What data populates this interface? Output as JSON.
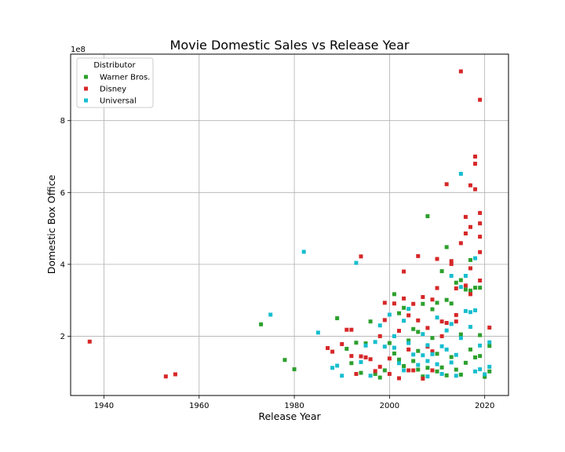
{
  "chart_data": {
    "type": "scatter",
    "title": "Movie Domestic Sales vs Release Year",
    "xlabel": "Release Year",
    "ylabel": "Domestic Box Office",
    "y_offset_label": "1e8",
    "xlim": [
      1933,
      2025
    ],
    "ylim": [
      0.35,
      9.85
    ],
    "y_scale_factor": 100000000,
    "x_ticks": [
      1940,
      1960,
      1980,
      2000,
      2020
    ],
    "y_ticks": [
      2,
      4,
      6,
      8
    ],
    "grid": true,
    "marker": "square",
    "legend": {
      "title": "Distributor",
      "placement": "top-left"
    },
    "series": [
      {
        "name": "Warner Bros.",
        "color": "#2ca02c",
        "points": [
          [
            1973,
            2.33
          ],
          [
            1978,
            1.34
          ],
          [
            1980,
            1.08
          ],
          [
            1989,
            2.5
          ],
          [
            1991,
            1.65
          ],
          [
            1992,
            1.25
          ],
          [
            1993,
            1.82
          ],
          [
            1994,
            0.98
          ],
          [
            1995,
            1.8
          ],
          [
            1996,
            2.41
          ],
          [
            1997,
            0.95
          ],
          [
            1998,
            0.85
          ],
          [
            1999,
            1.05
          ],
          [
            2000,
            1.81
          ],
          [
            2001,
            3.17
          ],
          [
            2001,
            1.52
          ],
          [
            2002,
            1.35
          ],
          [
            2002,
            2.64
          ],
          [
            2003,
            1.17
          ],
          [
            2003,
            2.79
          ],
          [
            2004,
            1.88
          ],
          [
            2005,
            1.31
          ],
          [
            2005,
            2.2
          ],
          [
            2006,
            1.07
          ],
          [
            2006,
            2.12
          ],
          [
            2007,
            0.88
          ],
          [
            2007,
            2.9
          ],
          [
            2008,
            5.34
          ],
          [
            2008,
            1.12
          ],
          [
            2009,
            2.75
          ],
          [
            2009,
            1.95
          ],
          [
            2010,
            1.02
          ],
          [
            2010,
            2.93
          ],
          [
            2011,
            3.81
          ],
          [
            2011,
            1.13
          ],
          [
            2012,
            4.48
          ],
          [
            2012,
            3.01
          ],
          [
            2012,
            0.91
          ],
          [
            2013,
            2.91
          ],
          [
            2013,
            1.42
          ],
          [
            2014,
            3.49
          ],
          [
            2014,
            1.07
          ],
          [
            2015,
            3.56
          ],
          [
            2015,
            2.05
          ],
          [
            2016,
            3.3
          ],
          [
            2016,
            1.26
          ],
          [
            2017,
            4.12
          ],
          [
            2017,
            1.63
          ],
          [
            2017,
            3.27
          ],
          [
            2018,
            1.41
          ],
          [
            2018,
            3.35
          ],
          [
            2019,
            3.35
          ],
          [
            2019,
            1.45
          ],
          [
            2019,
            2.03
          ],
          [
            2020,
            0.87
          ],
          [
            2021,
            1.73
          ],
          [
            2021,
            1.02
          ],
          [
            2015,
            0.93
          ],
          [
            2010,
            1.51
          ],
          [
            2006,
            1.59
          ]
        ]
      },
      {
        "name": "Disney",
        "color": "#d62728",
        "points": [
          [
            1937,
            1.85
          ],
          [
            1953,
            0.88
          ],
          [
            1955,
            0.94
          ],
          [
            1987,
            1.67
          ],
          [
            1988,
            1.57
          ],
          [
            1990,
            1.78
          ],
          [
            1991,
            2.18
          ],
          [
            1992,
            2.18
          ],
          [
            1992,
            1.45
          ],
          [
            1993,
            0.95
          ],
          [
            1994,
            4.22
          ],
          [
            1994,
            1.44
          ],
          [
            1995,
            1.41
          ],
          [
            1996,
            1.36
          ],
          [
            1997,
            1.03
          ],
          [
            1998,
            2.0
          ],
          [
            1998,
            1.15
          ],
          [
            1999,
            2.93
          ],
          [
            1999,
            2.45
          ],
          [
            2000,
            1.38
          ],
          [
            2001,
            2.91
          ],
          [
            2002,
            0.83
          ],
          [
            2002,
            2.15
          ],
          [
            2003,
            3.8
          ],
          [
            2003,
            3.05
          ],
          [
            2004,
            2.58
          ],
          [
            2004,
            1.05
          ],
          [
            2005,
            2.9
          ],
          [
            2005,
            1.05
          ],
          [
            2006,
            4.23
          ],
          [
            2006,
            2.44
          ],
          [
            2007,
            3.09
          ],
          [
            2007,
            0.82
          ],
          [
            2008,
            2.23
          ],
          [
            2008,
            1.71
          ],
          [
            2009,
            3.02
          ],
          [
            2009,
            1.58
          ],
          [
            2010,
            4.15
          ],
          [
            2010,
            3.34
          ],
          [
            2011,
            2.41
          ],
          [
            2012,
            6.23
          ],
          [
            2012,
            2.37
          ],
          [
            2013,
            4.09
          ],
          [
            2013,
            4.01
          ],
          [
            2014,
            3.33
          ],
          [
            2014,
            2.59
          ],
          [
            2015,
            9.37
          ],
          [
            2015,
            4.59
          ],
          [
            2016,
            5.32
          ],
          [
            2016,
            4.86
          ],
          [
            2016,
            3.41
          ],
          [
            2017,
            6.2
          ],
          [
            2017,
            5.04
          ],
          [
            2017,
            3.89
          ],
          [
            2018,
            7.0
          ],
          [
            2018,
            6.8
          ],
          [
            2018,
            6.09
          ],
          [
            2019,
            8.58
          ],
          [
            2019,
            5.43
          ],
          [
            2019,
            4.77
          ],
          [
            2019,
            4.34
          ],
          [
            2019,
            3.55
          ],
          [
            2019,
            5.14
          ],
          [
            2021,
            2.24
          ],
          [
            2017,
            3.17
          ],
          [
            2014,
            2.41
          ],
          [
            2011,
            2.0
          ],
          [
            2009,
            1.05
          ],
          [
            2004,
            1.63
          ],
          [
            2000,
            0.95
          ]
        ]
      },
      {
        "name": "Universal",
        "color": "#17becf",
        "points": [
          [
            1975,
            2.6
          ],
          [
            1982,
            4.35
          ],
          [
            1985,
            2.1
          ],
          [
            1988,
            1.12
          ],
          [
            1989,
            1.18
          ],
          [
            1990,
            0.9
          ],
          [
            1993,
            4.04
          ],
          [
            1994,
            1.28
          ],
          [
            1995,
            1.74
          ],
          [
            1997,
            1.84
          ],
          [
            1998,
            2.3
          ],
          [
            1999,
            1.71
          ],
          [
            2000,
            2.6
          ],
          [
            2001,
            2.0
          ],
          [
            2002,
            1.25
          ],
          [
            2003,
            2.43
          ],
          [
            2004,
            2.76
          ],
          [
            2004,
            1.81
          ],
          [
            2005,
            1.49
          ],
          [
            2006,
            1.2
          ],
          [
            2007,
            2.06
          ],
          [
            2007,
            1.47
          ],
          [
            2008,
            1.75
          ],
          [
            2008,
            1.31
          ],
          [
            2009,
            1.5
          ],
          [
            2010,
            2.52
          ],
          [
            2010,
            1.22
          ],
          [
            2011,
            1.72
          ],
          [
            2012,
            2.16
          ],
          [
            2012,
            1.63
          ],
          [
            2013,
            3.68
          ],
          [
            2013,
            2.34
          ],
          [
            2013,
            1.27
          ],
          [
            2014,
            1.48
          ],
          [
            2015,
            6.52
          ],
          [
            2015,
            3.37
          ],
          [
            2015,
            1.95
          ],
          [
            2016,
            3.68
          ],
          [
            2016,
            2.7
          ],
          [
            2017,
            2.26
          ],
          [
            2017,
            2.67
          ],
          [
            2018,
            4.17
          ],
          [
            2018,
            2.72
          ],
          [
            2019,
            1.74
          ],
          [
            2019,
            1.08
          ],
          [
            2020,
            0.94
          ],
          [
            2021,
            1.83
          ],
          [
            2021,
            1.15
          ],
          [
            2014,
            0.9
          ],
          [
            2011,
            0.95
          ],
          [
            2008,
            0.88
          ],
          [
            2003,
            1.05
          ],
          [
            2001,
            1.68
          ],
          [
            1996,
            0.9
          ],
          [
            2018,
            1.02
          ]
        ]
      }
    ]
  }
}
